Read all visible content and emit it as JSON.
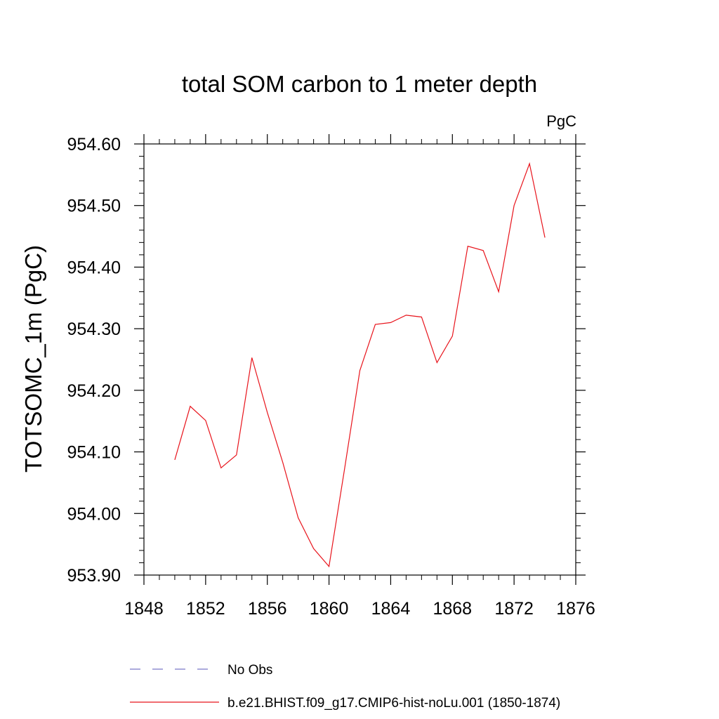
{
  "chart_data": {
    "type": "line",
    "title": "total SOM carbon to 1 meter depth",
    "units_label": "PgC",
    "xlabel": "",
    "ylabel": "TOTSOMC_1m  (PgC)",
    "xlim": [
      1848,
      1876
    ],
    "ylim": [
      953.9,
      954.6
    ],
    "x_ticks": [
      1848,
      1852,
      1856,
      1860,
      1864,
      1868,
      1872,
      1876
    ],
    "x_tick_labels": [
      "1848",
      "1852",
      "1856",
      "1860",
      "1864",
      "1868",
      "1872",
      "1876"
    ],
    "y_ticks": [
      953.9,
      954.0,
      954.1,
      954.2,
      954.3,
      954.4,
      954.5,
      954.6
    ],
    "y_tick_labels": [
      "953.90",
      "954.00",
      "954.10",
      "954.20",
      "954.30",
      "954.40",
      "954.50",
      "954.60"
    ],
    "grid": false,
    "legend_position": "bottom",
    "series": [
      {
        "name": "b.e21.BHIST.f09_g17.CMIP6-hist-noLu.001 (1850-1874)",
        "color": "#e8141c",
        "x": [
          1850,
          1851,
          1852,
          1853,
          1854,
          1855,
          1856,
          1857,
          1858,
          1859,
          1860,
          1861,
          1862,
          1863,
          1864,
          1865,
          1866,
          1867,
          1868,
          1869,
          1870,
          1871,
          1872,
          1873,
          1874
        ],
        "values": [
          954.087,
          954.174,
          954.151,
          954.074,
          954.095,
          954.253,
          954.164,
          954.083,
          953.993,
          953.943,
          953.914,
          954.071,
          954.232,
          954.307,
          954.31,
          954.322,
          954.319,
          954.245,
          954.288,
          954.434,
          954.427,
          954.36,
          954.5,
          954.568,
          954.448
        ]
      }
    ]
  },
  "legend": {
    "items": [
      {
        "label": "No Obs",
        "color": "#7b78c8",
        "style": "dashed"
      },
      {
        "label": "b.e21.BHIST.f09_g17.CMIP6-hist-noLu.001 (1850-1874)",
        "color": "#e8141c",
        "style": "solid"
      }
    ]
  }
}
